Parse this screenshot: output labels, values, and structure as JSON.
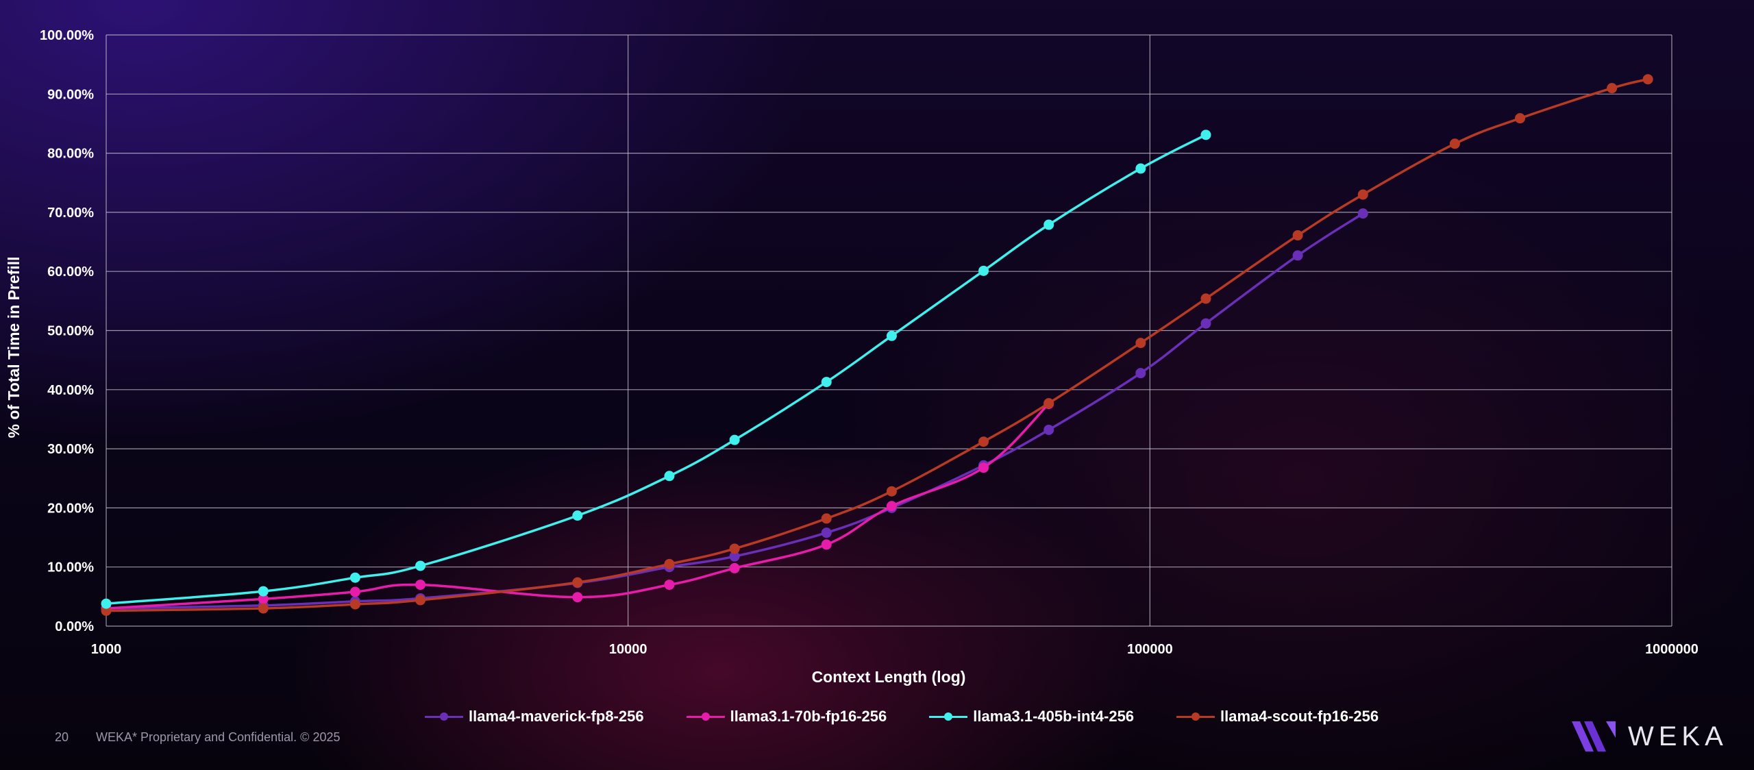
{
  "page": {
    "slide_number": "20",
    "footer_text": "WEKA* Proprietary and Confidential. © 2025",
    "brand_name": "WEKA",
    "brand_logo_icon": "weka-logo-icon",
    "brand_color": "#7b3fe4"
  },
  "chart_data": {
    "type": "line",
    "title": "",
    "xlabel": "Context Length (log)",
    "ylabel": "% of Total Time in Prefill",
    "x_scale": "log",
    "xlim": [
      1000,
      1000000
    ],
    "ylim": [
      0,
      100
    ],
    "x_ticks": [
      "1000",
      "10000",
      "100000",
      "1000000"
    ],
    "y_ticks": [
      "0.00%",
      "10.00%",
      "20.00%",
      "30.00%",
      "40.00%",
      "50.00%",
      "60.00%",
      "70.00%",
      "80.00%",
      "90.00%",
      "100.00%"
    ],
    "grid": true,
    "legend_position": "bottom",
    "series": [
      {
        "name": "llama4-maverick-fp8-256",
        "color": "#6a2fb8",
        "x": [
          1000,
          2000,
          3000,
          4000,
          8000,
          12000,
          16000,
          24000,
          32000,
          48000,
          64000,
          96000,
          128000,
          192000,
          256000
        ],
        "y": [
          3.0,
          3.5,
          4.2,
          4.7,
          7.3,
          10.0,
          11.8,
          15.8,
          20.0,
          27.2,
          33.2,
          42.8,
          51.2,
          62.7,
          69.8
        ]
      },
      {
        "name": "llama3.1-70b-fp16-256",
        "color": "#e81cab",
        "x": [
          1000,
          2000,
          3000,
          4000,
          8000,
          12000,
          16000,
          24000,
          32000,
          48000,
          64000
        ],
        "y": [
          3.0,
          4.6,
          5.8,
          7.0,
          4.9,
          7.0,
          9.8,
          13.8,
          20.3,
          26.8,
          37.6
        ]
      },
      {
        "name": "llama3.1-405b-int4-256",
        "color": "#3ff0ec",
        "x": [
          1000,
          2000,
          3000,
          4000,
          8000,
          12000,
          16000,
          24000,
          32000,
          48000,
          64000,
          96000,
          128000
        ],
        "y": [
          3.8,
          5.9,
          8.2,
          10.2,
          18.7,
          25.4,
          31.5,
          41.3,
          49.1,
          60.1,
          67.9,
          77.4,
          83.1
        ]
      },
      {
        "name": "llama4-scout-fp16-256",
        "color": "#b83a24",
        "x": [
          1000,
          2000,
          3000,
          4000,
          8000,
          12000,
          16000,
          24000,
          32000,
          48000,
          64000,
          96000,
          128000,
          192000,
          256000,
          384000,
          512000,
          768000,
          900000
        ],
        "y": [
          2.6,
          3.0,
          3.7,
          4.4,
          7.4,
          10.5,
          13.1,
          18.2,
          22.8,
          31.2,
          37.7,
          47.9,
          55.4,
          66.1,
          73.0,
          81.6,
          85.9,
          91.0,
          92.5
        ]
      }
    ]
  }
}
